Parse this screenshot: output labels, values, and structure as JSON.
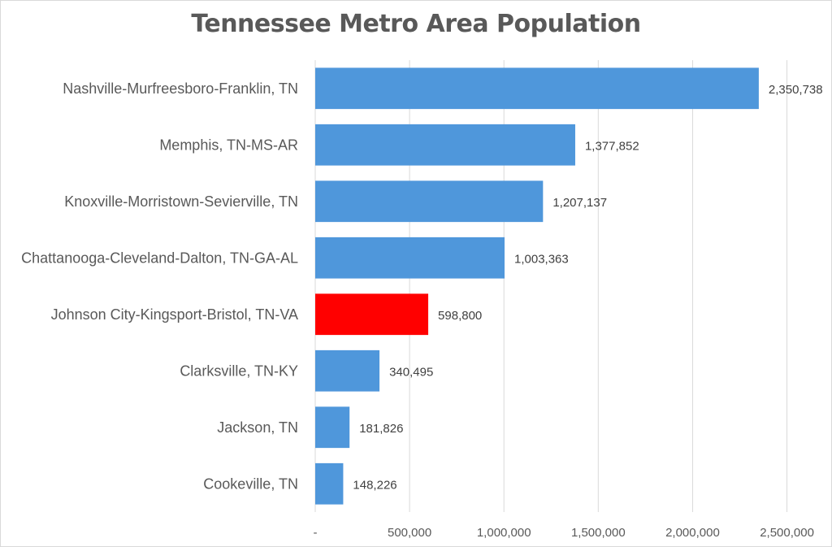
{
  "chart_data": {
    "type": "bar",
    "orientation": "horizontal",
    "title": "Tennessee Metro Area Population",
    "categories": [
      "Nashville-Murfreesboro-Franklin, TN",
      "Memphis, TN-MS-AR",
      "Knoxville-Morristown-Sevierville, TN",
      "Chattanooga-Cleveland-Dalton, TN-GA-AL",
      "Johnson City-Kingsport-Bristol, TN-VA",
      "Clarksville, TN-KY",
      "Jackson, TN",
      "Cookeville, TN"
    ],
    "values": [
      2350738,
      1377852,
      1207137,
      1003363,
      598800,
      340495,
      181826,
      148226
    ],
    "value_labels": [
      "2,350,738",
      "1,377,852",
      "1,207,137",
      "1,003,363",
      "598,800",
      "340,495",
      "181,826",
      "148,226"
    ],
    "bar_colors": [
      "#4f97db",
      "#4f97db",
      "#4f97db",
      "#4f97db",
      "#ff0000",
      "#4f97db",
      "#4f97db",
      "#4f97db"
    ],
    "highlight_category": "Johnson City-Kingsport-Bristol, TN-VA",
    "xlim": [
      0,
      2700000
    ],
    "xticks": [
      0,
      500000,
      1000000,
      1500000,
      2000000,
      2500000
    ],
    "xtick_labels": [
      "-",
      "500,000",
      "1,000,000",
      "1,500,000",
      "2,000,000",
      "2,500,000"
    ],
    "xlabel": "",
    "ylabel": "",
    "grid": "vertical",
    "legend": "none"
  }
}
